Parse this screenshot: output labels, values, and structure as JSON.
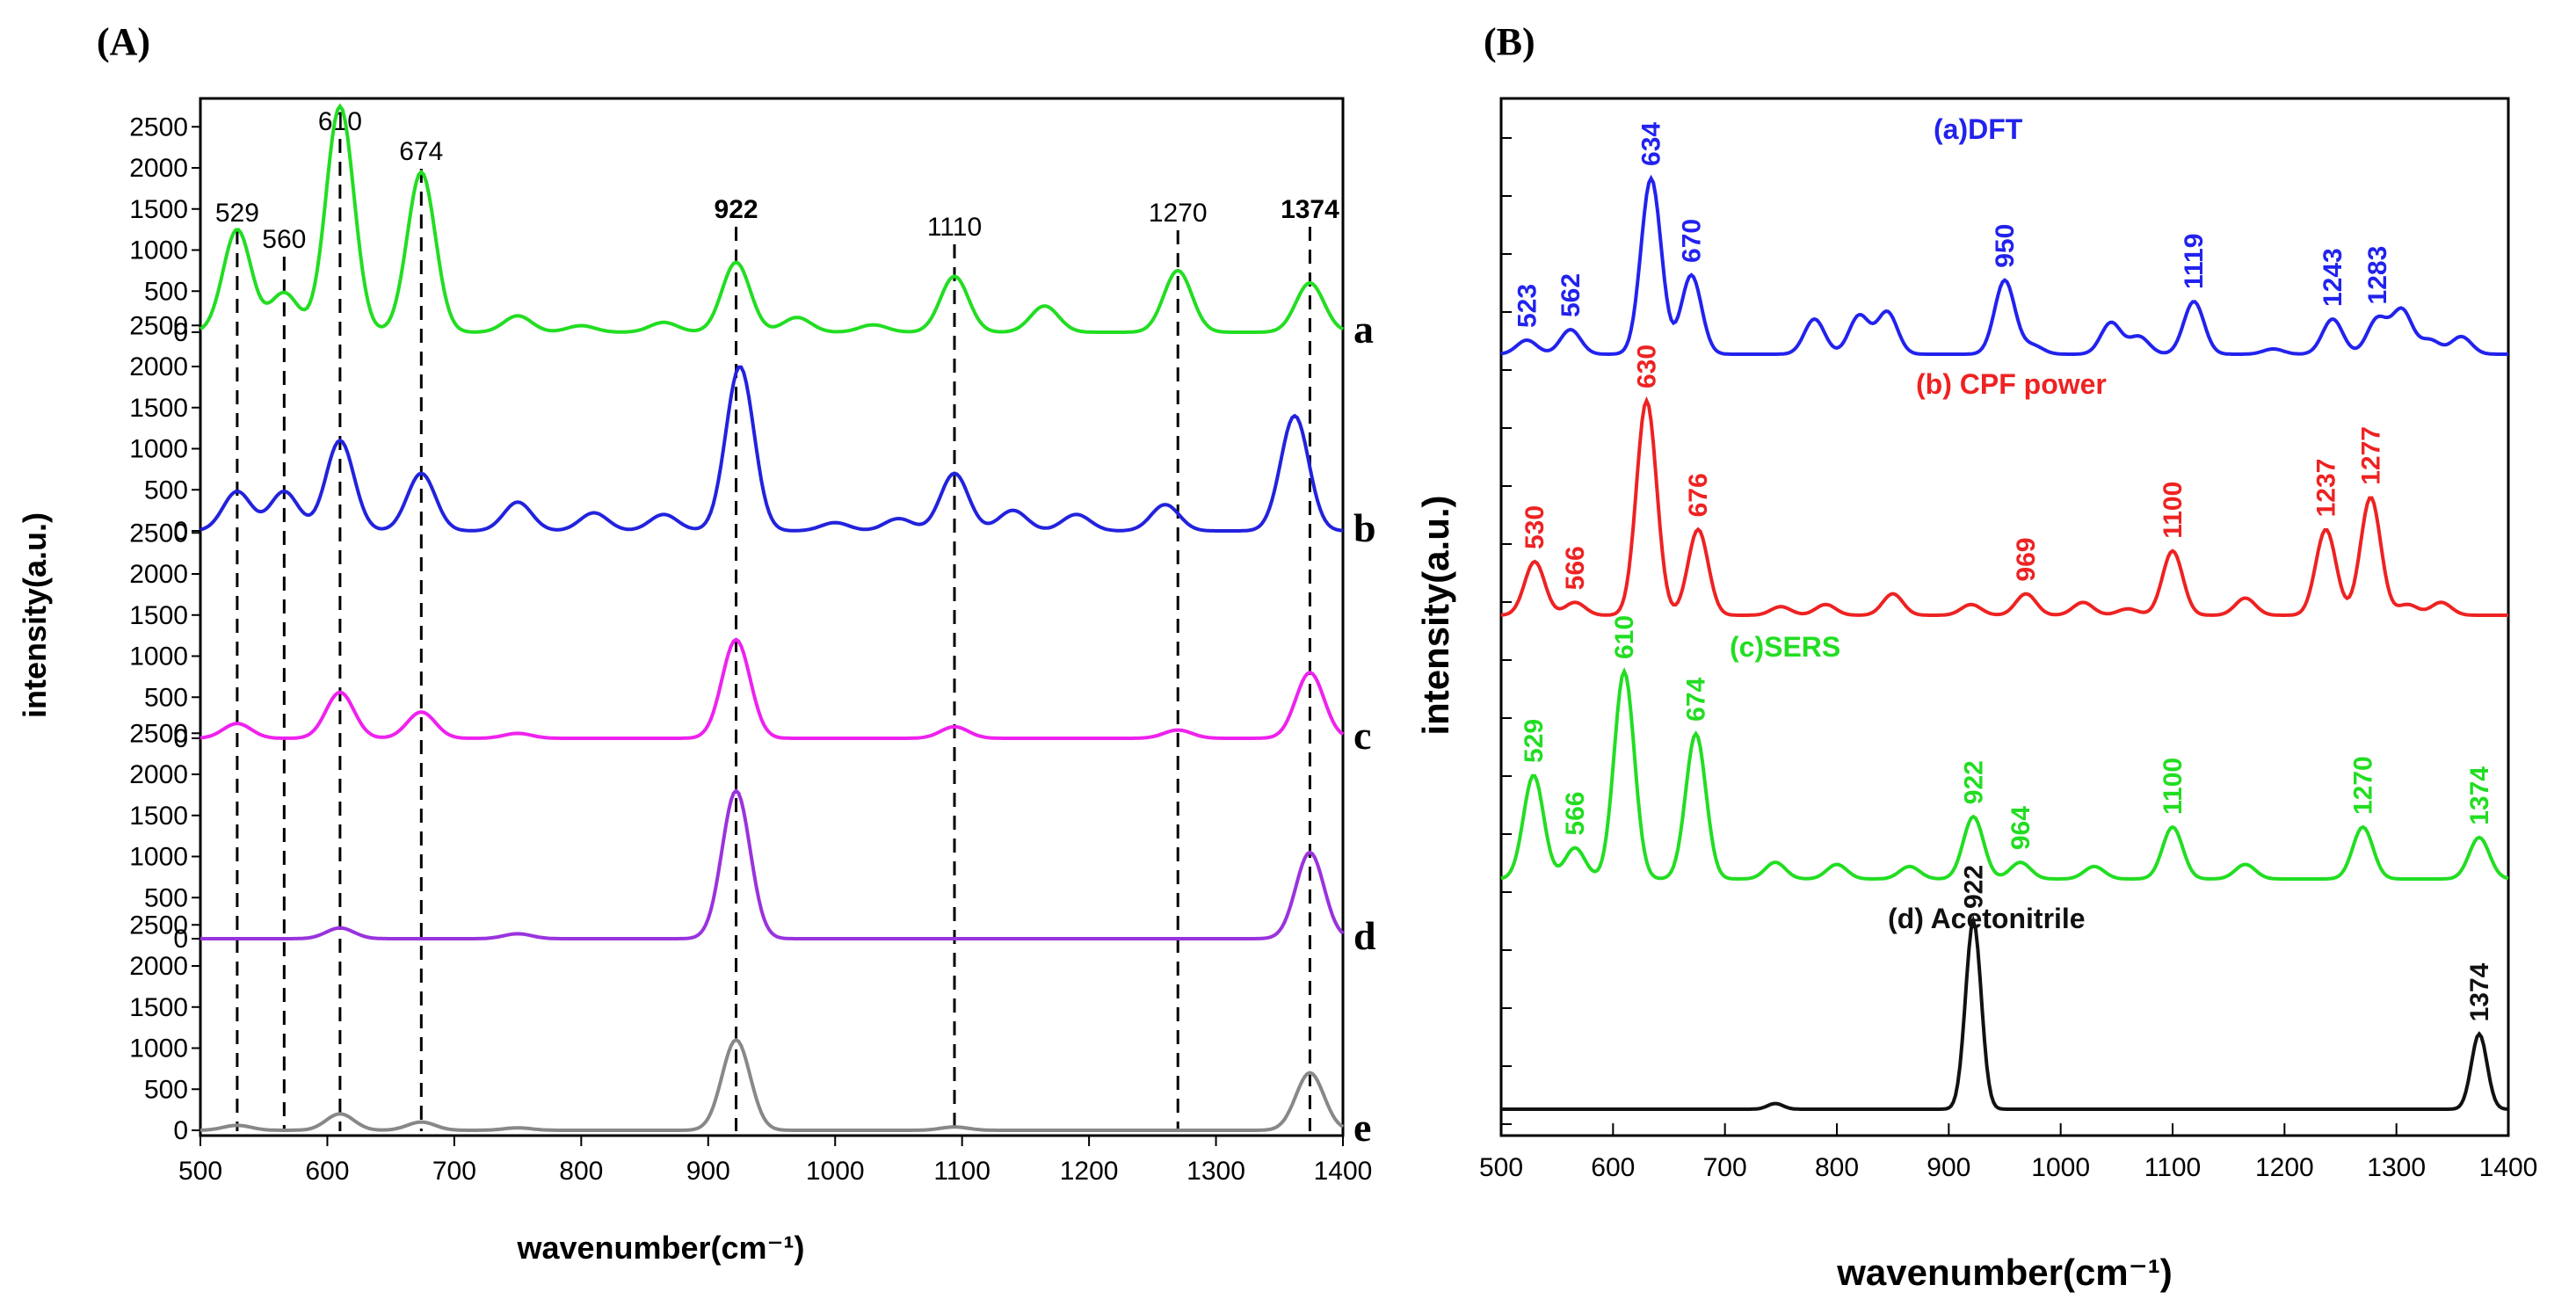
{
  "chart_data": [
    {
      "panel": "(A)",
      "type": "line",
      "title": "",
      "xlabel": "wavenumber(cm⁻¹)",
      "ylabel": "intensity(a.u.)",
      "xlim": [
        500,
        1400
      ],
      "x_ticks": [
        "500",
        "600",
        "700",
        "800",
        "900",
        "1000",
        "1100",
        "1200",
        "1300",
        "1400"
      ],
      "y_ticks": [
        "0",
        "500",
        "1000",
        "1500",
        "2000",
        "2500"
      ],
      "grid": false,
      "series": [
        {
          "name": "a",
          "color": "#22dd22",
          "peaks": [
            [
              529,
              1250
            ],
            [
              566,
              480
            ],
            [
              610,
              2750
            ],
            [
              674,
              1950
            ],
            [
              750,
              200
            ],
            [
              800,
              80
            ],
            [
              865,
              120
            ],
            [
              922,
              850
            ],
            [
              970,
              180
            ],
            [
              1030,
              90
            ],
            [
              1094,
              680
            ],
            [
              1165,
              320
            ],
            [
              1270,
              750
            ],
            [
              1374,
              600
            ]
          ]
        },
        {
          "name": "b",
          "color": "#2222dd",
          "peaks": [
            [
              529,
              480
            ],
            [
              566,
              480
            ],
            [
              610,
              1100
            ],
            [
              674,
              700
            ],
            [
              750,
              350
            ],
            [
              810,
              220
            ],
            [
              865,
              200
            ],
            [
              925,
              2000
            ],
            [
              1000,
              100
            ],
            [
              1050,
              150
            ],
            [
              1094,
              700
            ],
            [
              1140,
              250
            ],
            [
              1190,
              200
            ],
            [
              1260,
              320
            ],
            [
              1362,
              1400
            ]
          ]
        },
        {
          "name": "c",
          "color": "#ee22ee",
          "peaks": [
            [
              529,
              180
            ],
            [
              610,
              560
            ],
            [
              674,
              320
            ],
            [
              750,
              60
            ],
            [
              922,
              1200
            ],
            [
              1094,
              140
            ],
            [
              1270,
              100
            ],
            [
              1374,
              800
            ]
          ]
        },
        {
          "name": "d",
          "color": "#9933dd",
          "peaks": [
            [
              610,
              130
            ],
            [
              750,
              60
            ],
            [
              922,
              1800
            ],
            [
              1374,
              1050
            ]
          ]
        },
        {
          "name": "e",
          "color": "#888888",
          "peaks": [
            [
              529,
              60
            ],
            [
              610,
              200
            ],
            [
              674,
              100
            ],
            [
              750,
              30
            ],
            [
              922,
              1100
            ],
            [
              1094,
              40
            ],
            [
              1374,
              700
            ]
          ]
        }
      ],
      "annotations": [
        {
          "label": "529",
          "x": 529,
          "color": "#000000"
        },
        {
          "label": "560",
          "x": 566,
          "color": "#000000"
        },
        {
          "label": "610",
          "x": 610,
          "color": "#000000"
        },
        {
          "label": "674",
          "x": 674,
          "color": "#000000"
        },
        {
          "label": "922",
          "x": 922,
          "color": "#ff2222"
        },
        {
          "label": "1110",
          "x": 1094,
          "color": "#000000"
        },
        {
          "label": "1270",
          "x": 1270,
          "color": "#000000"
        },
        {
          "label": "1374",
          "x": 1374,
          "color": "#ff2222"
        }
      ]
    },
    {
      "panel": "(B)",
      "type": "line",
      "title": "",
      "xlabel": "wavenumber(cm⁻¹)",
      "ylabel": "intensity(a.u.)",
      "xlim": [
        500,
        1400
      ],
      "x_ticks": [
        "500",
        "600",
        "700",
        "800",
        "900",
        "1000",
        "1100",
        "1200",
        "1300",
        "1400"
      ],
      "grid": false,
      "series": [
        {
          "name": "(a)DFT",
          "color": "#2222ee",
          "peaks": [
            [
              523,
              0.08
            ],
            [
              562,
              0.14
            ],
            [
              634,
              1.0
            ],
            [
              670,
              0.45
            ],
            [
              780,
              0.2
            ],
            [
              820,
              0.22
            ],
            [
              845,
              0.24
            ],
            [
              950,
              0.42
            ],
            [
              975,
              0.05
            ],
            [
              1045,
              0.18
            ],
            [
              1070,
              0.1
            ],
            [
              1119,
              0.3
            ],
            [
              1190,
              0.03
            ],
            [
              1243,
              0.2
            ],
            [
              1283,
              0.2
            ],
            [
              1305,
              0.25
            ],
            [
              1330,
              0.08
            ],
            [
              1358,
              0.1
            ]
          ],
          "labels": [
            [
              "523",
              523
            ],
            [
              "562",
              562
            ],
            [
              "634",
              634
            ],
            [
              "670",
              670
            ],
            [
              "950",
              950
            ],
            [
              "1119",
              1119
            ],
            [
              "1243",
              1243
            ],
            [
              "1283",
              1283
            ]
          ]
        },
        {
          "name": "(b) CPF power",
          "color": "#ee2222",
          "peaks": [
            [
              530,
              0.25
            ],
            [
              566,
              0.06
            ],
            [
              630,
              1.0
            ],
            [
              676,
              0.4
            ],
            [
              750,
              0.04
            ],
            [
              790,
              0.05
            ],
            [
              850,
              0.1
            ],
            [
              920,
              0.05
            ],
            [
              969,
              0.1
            ],
            [
              1020,
              0.06
            ],
            [
              1060,
              0.03
            ],
            [
              1100,
              0.3
            ],
            [
              1165,
              0.08
            ],
            [
              1237,
              0.4
            ],
            [
              1277,
              0.55
            ],
            [
              1310,
              0.05
            ],
            [
              1340,
              0.06
            ]
          ],
          "labels": [
            [
              "530",
              530
            ],
            [
              "566",
              566
            ],
            [
              "630",
              630
            ],
            [
              "676",
              676
            ],
            [
              "969",
              969
            ],
            [
              "1100",
              1100
            ],
            [
              "1237",
              1237
            ],
            [
              "1277",
              1277
            ]
          ]
        },
        {
          "name": "(c)SERS",
          "color": "#22dd22",
          "peaks": [
            [
              529,
              0.5
            ],
            [
              566,
              0.15
            ],
            [
              610,
              1.0
            ],
            [
              674,
              0.7
            ],
            [
              745,
              0.08
            ],
            [
              800,
              0.07
            ],
            [
              865,
              0.06
            ],
            [
              922,
              0.3
            ],
            [
              964,
              0.08
            ],
            [
              1030,
              0.06
            ],
            [
              1100,
              0.25
            ],
            [
              1165,
              0.07
            ],
            [
              1270,
              0.25
            ],
            [
              1374,
              0.2
            ]
          ],
          "labels": [
            [
              "529",
              529
            ],
            [
              "566",
              566
            ],
            [
              "610",
              610
            ],
            [
              "674",
              674
            ],
            [
              "922",
              922
            ],
            [
              "964",
              964
            ],
            [
              "1100",
              1100
            ],
            [
              "1270",
              1270
            ],
            [
              "1374",
              1374
            ]
          ]
        },
        {
          "name": "(d) Acetonitrile",
          "color": "#111111",
          "peaks": [
            [
              745,
              0.03
            ],
            [
              922,
              1.0
            ],
            [
              1374,
              0.4
            ]
          ],
          "labels": [
            [
              "922",
              922
            ],
            [
              "1374",
              1374
            ]
          ]
        }
      ]
    }
  ]
}
